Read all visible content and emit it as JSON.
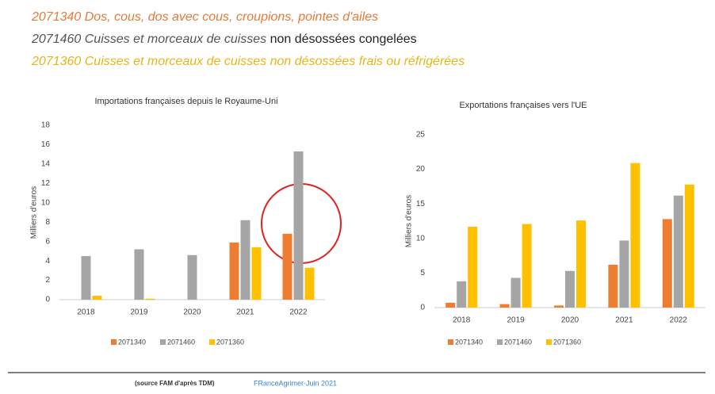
{
  "header": {
    "lines": [
      {
        "parts": [
          "2071340 Dos, cous, dos avec cous, croupions, pointes d'ailes"
        ]
      },
      {
        "parts": [
          "2071460 Cuisses et morceaux de cuisses ",
          "non désossées congelées"
        ]
      },
      {
        "parts": [
          "2071360 Cuisses et morceaux de cuisses non désossées frais ou réfrigérées"
        ]
      }
    ]
  },
  "chart_data": [
    {
      "type": "bar",
      "title": "Importations françaises depuis le Royaume-Uni",
      "y_label": "Milliers d'euros",
      "categories": [
        "2018",
        "2019",
        "2020",
        "2021",
        "2022"
      ],
      "series": [
        {
          "name": "2071340",
          "color": "#ed7d31",
          "values": [
            0,
            0,
            0,
            5.9,
            6.8
          ]
        },
        {
          "name": "2071460",
          "color": "#a5a5a5",
          "values": [
            4.5,
            5.2,
            4.6,
            8.2,
            15.3
          ]
        },
        {
          "name": "2071360",
          "color": "#ffc000",
          "values": [
            0.4,
            0.1,
            0,
            5.4,
            3.3
          ]
        }
      ],
      "ylim": [
        0,
        18
      ],
      "yticks": [
        0,
        2,
        4,
        6,
        8,
        10,
        12,
        14,
        16,
        18
      ],
      "grid": false,
      "legend": "bottom"
    },
    {
      "type": "bar",
      "title": "Exportations françaises vers l'UE",
      "y_label": "Milliers d'euros",
      "categories": [
        "2018",
        "2019",
        "2020",
        "2021",
        "2022"
      ],
      "series": [
        {
          "name": "2071340",
          "color": "#ed7d31",
          "values": [
            0.7,
            0.5,
            0.3,
            6.2,
            12.8
          ]
        },
        {
          "name": "2071460",
          "color": "#a5a5a5",
          "values": [
            3.8,
            4.3,
            5.3,
            9.7,
            16.2
          ]
        },
        {
          "name": "2071360",
          "color": "#ffc000",
          "values": [
            11.7,
            12.1,
            12.6,
            20.9,
            17.8
          ]
        }
      ],
      "ylim": [
        0,
        25
      ],
      "yticks": [
        0,
        5,
        10,
        15,
        20,
        25
      ],
      "grid": false,
      "legend": "bottom"
    }
  ],
  "footer": {
    "source": "(source FAM d'après TDM)",
    "credit": "FRanceAgrimer-Juin 2021"
  }
}
